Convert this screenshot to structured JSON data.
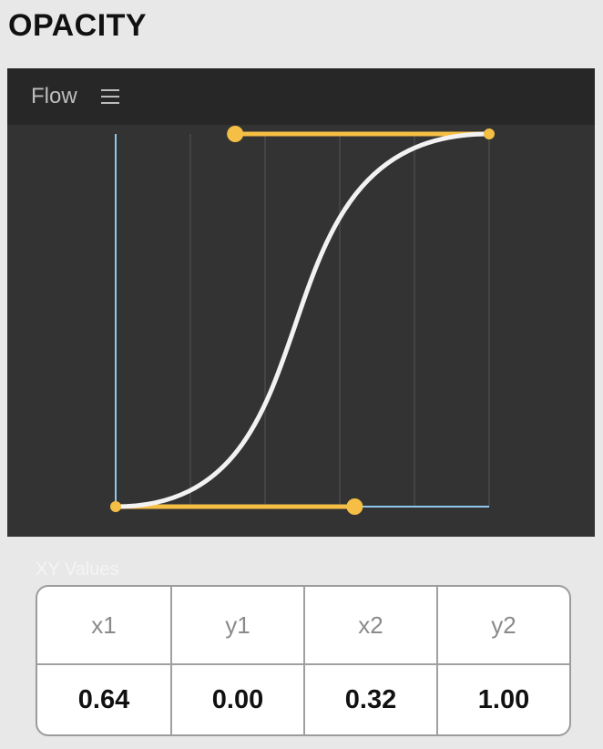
{
  "section": {
    "title": "OPACITY"
  },
  "panel": {
    "title": "Flow",
    "menu_icon": "hamburger-menu-icon"
  },
  "curve": {
    "type": "cubic-bezier-easing",
    "x1": 0.64,
    "y1": 0.0,
    "x2": 0.32,
    "y2": 1.0,
    "curve_color": "#f2f2f2",
    "handle_color": "#f5be45",
    "axis_color": "#8fc8ec",
    "grid_color": "#4a4a4a"
  },
  "xy_values": {
    "label": "XY Values",
    "headers": [
      "x1",
      "y1",
      "x2",
      "y2"
    ],
    "values": [
      "0.64",
      "0.00",
      "0.32",
      "1.00"
    ]
  }
}
